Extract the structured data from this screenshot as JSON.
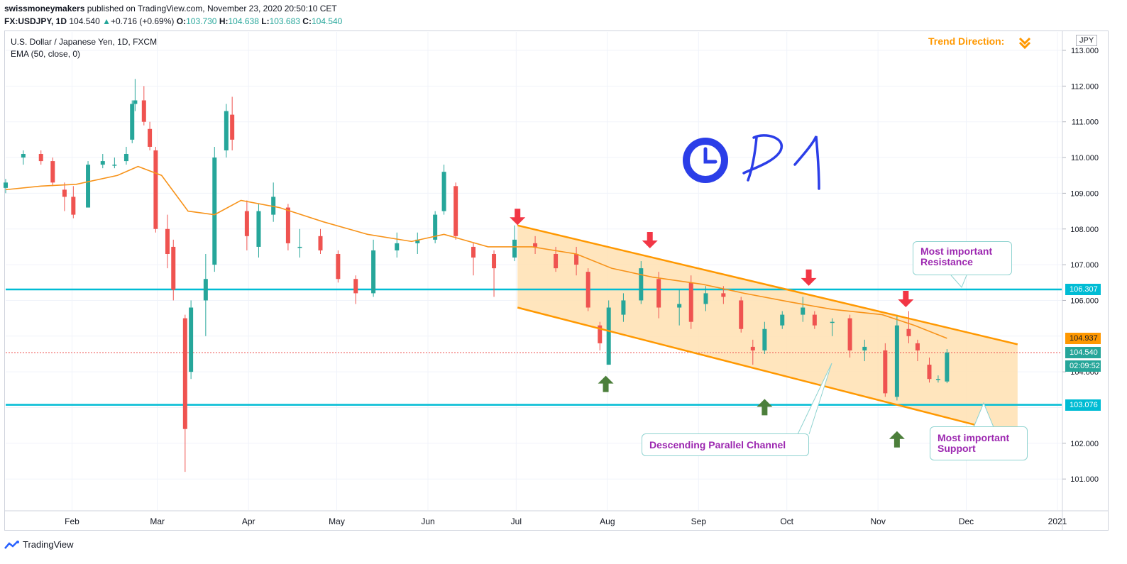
{
  "header": {
    "publisher": "swissmoneymakers",
    "published_text": "published on TradingView.com, November 23, 2020 20:50:10 CET",
    "symbol": "FX:USDJPY, 1D",
    "last": "104.540",
    "change": "+0.716 (+0.69%)",
    "open_label": "O:",
    "open": "103.730",
    "high_label": "H:",
    "high": "104.638",
    "low_label": "L:",
    "low": "103.683",
    "close_label": "C:",
    "close": "104.540"
  },
  "legend": {
    "instrument": "U.S. Dollar / Japanese Yen, 1D, FXCM",
    "indicator": "EMA (50, close, 0)"
  },
  "annotations": {
    "trend_direction": "Trend Direction:",
    "timeframe_text": "D1",
    "resistance_label_1": "Most important",
    "resistance_label_2": "Resistance",
    "support_label_1": "Most important",
    "support_label_2": "Support",
    "channel_label": "Descending Parallel Channel"
  },
  "price_scale": {
    "currency": "JPY",
    "ticks": [
      "113.000",
      "112.000",
      "111.000",
      "110.000",
      "109.000",
      "108.000",
      "107.000",
      "106.000",
      "104.000",
      "102.000",
      "101.000"
    ],
    "tags": {
      "resistance": "106.307",
      "ema": "104.937",
      "last": "104.540",
      "countdown": "02:09:52",
      "support": "103.076"
    }
  },
  "time_axis": {
    "labels": [
      "Feb",
      "Mar",
      "Apr",
      "May",
      "Jun",
      "Jul",
      "Aug",
      "Sep",
      "Oct",
      "Nov",
      "Dec",
      "2021"
    ]
  },
  "footer": {
    "brand": "TradingView"
  },
  "colors": {
    "up": "#26a69a",
    "down": "#ef5350",
    "ema": "#f7931a",
    "channel": "#ff9800",
    "channel_fill": "#ffe0b2",
    "level": "#00bcd4",
    "callout_text": "#9c27b0",
    "arrow_red": "#f23645",
    "arrow_green": "#4c7f3b",
    "clock": "#2b3ee8"
  },
  "chart_data": {
    "type": "candlestick",
    "title": "U.S. Dollar / Japanese Yen, 1D, FXCM",
    "ylim": [
      100.1,
      113.5
    ],
    "x_range": [
      "2020-01-08",
      "2021-01-01"
    ],
    "levels": {
      "resistance": 106.307,
      "support": 103.076,
      "last": 104.54,
      "ema_last": 104.937
    },
    "channel": {
      "upper": [
        [
          "2020-06-30",
          108.1
        ],
        [
          "2020-12-17",
          104.77
        ]
      ],
      "lower": [
        [
          "2020-06-30",
          105.8
        ],
        [
          "2020-12-17",
          102.45
        ]
      ]
    },
    "ema_series": [
      [
        "2020-01-08",
        109.1
      ],
      [
        "2020-01-20",
        109.2
      ],
      [
        "2020-02-01",
        109.25
      ],
      [
        "2020-02-15",
        109.5
      ],
      [
        "2020-02-22",
        109.75
      ],
      [
        "2020-03-01",
        109.5
      ],
      [
        "2020-03-10",
        108.5
      ],
      [
        "2020-03-19",
        108.4
      ],
      [
        "2020-03-28",
        108.8
      ],
      [
        "2020-04-10",
        108.6
      ],
      [
        "2020-04-25",
        108.2
      ],
      [
        "2020-05-10",
        107.85
      ],
      [
        "2020-05-25",
        107.65
      ],
      [
        "2020-06-05",
        107.85
      ],
      [
        "2020-06-20",
        107.5
      ],
      [
        "2020-07-05",
        107.5
      ],
      [
        "2020-07-20",
        107.3
      ],
      [
        "2020-08-01",
        106.9
      ],
      [
        "2020-08-15",
        106.65
      ],
      [
        "2020-09-01",
        106.45
      ],
      [
        "2020-09-15",
        106.2
      ],
      [
        "2020-10-01",
        105.95
      ],
      [
        "2020-10-15",
        105.75
      ],
      [
        "2020-11-01",
        105.6
      ],
      [
        "2020-11-12",
        105.3
      ],
      [
        "2020-11-23",
        104.94
      ]
    ],
    "ohlc": [
      [
        "2020-01-08",
        109.15,
        109.4,
        109.0,
        109.3
      ],
      [
        "2020-01-14",
        110.0,
        110.2,
        109.8,
        110.1
      ],
      [
        "2020-01-20",
        110.1,
        110.2,
        109.8,
        109.9
      ],
      [
        "2020-01-24",
        109.9,
        110.0,
        109.2,
        109.3
      ],
      [
        "2020-01-28",
        109.1,
        109.3,
        108.5,
        108.9
      ],
      [
        "2020-01-31",
        108.9,
        109.2,
        108.3,
        108.4
      ],
      [
        "2020-02-05",
        108.6,
        109.9,
        108.6,
        109.8
      ],
      [
        "2020-02-10",
        109.8,
        110.1,
        109.7,
        109.9
      ],
      [
        "2020-02-14",
        109.8,
        110.0,
        109.7,
        109.8
      ],
      [
        "2020-02-18",
        109.9,
        110.3,
        109.8,
        110.1
      ],
      [
        "2020-02-20",
        110.5,
        111.6,
        110.4,
        111.5
      ],
      [
        "2020-02-21",
        111.5,
        112.2,
        111.3,
        111.6
      ],
      [
        "2020-02-24",
        111.6,
        112.0,
        110.9,
        111.0
      ],
      [
        "2020-02-26",
        110.8,
        111.0,
        110.2,
        110.3
      ],
      [
        "2020-02-28",
        110.2,
        110.3,
        107.9,
        108.0
      ],
      [
        "2020-03-03",
        108.0,
        108.4,
        106.9,
        107.3
      ],
      [
        "2020-03-05",
        107.5,
        107.7,
        106.0,
        106.3
      ],
      [
        "2020-03-09",
        105.5,
        105.6,
        101.2,
        102.4
      ],
      [
        "2020-03-11",
        104.0,
        106.0,
        103.8,
        105.8
      ],
      [
        "2020-03-16",
        106.0,
        107.3,
        105.0,
        106.6
      ],
      [
        "2020-03-19",
        107.0,
        110.3,
        106.8,
        110.0
      ],
      [
        "2020-03-23",
        110.2,
        111.5,
        110.0,
        111.3
      ],
      [
        "2020-03-25",
        111.2,
        111.7,
        110.2,
        110.5
      ],
      [
        "2020-03-30",
        108.5,
        108.8,
        107.4,
        107.8
      ],
      [
        "2020-04-03",
        107.5,
        108.7,
        107.2,
        108.5
      ],
      [
        "2020-04-08",
        108.4,
        109.3,
        108.2,
        108.9
      ],
      [
        "2020-04-13",
        108.6,
        108.7,
        107.4,
        107.6
      ],
      [
        "2020-04-17",
        107.5,
        108.0,
        107.2,
        107.5
      ],
      [
        "2020-04-24",
        107.8,
        108.0,
        107.3,
        107.4
      ],
      [
        "2020-04-30",
        107.3,
        107.4,
        106.5,
        106.6
      ],
      [
        "2020-05-06",
        106.6,
        106.7,
        105.9,
        106.2
      ],
      [
        "2020-05-12",
        106.2,
        107.7,
        106.1,
        107.4
      ],
      [
        "2020-05-20",
        107.4,
        107.9,
        107.2,
        107.6
      ],
      [
        "2020-05-27",
        107.6,
        107.9,
        107.3,
        107.7
      ],
      [
        "2020-06-02",
        107.7,
        108.5,
        107.6,
        108.4
      ],
      [
        "2020-06-05",
        108.5,
        109.8,
        108.4,
        109.6
      ],
      [
        "2020-06-09",
        109.2,
        109.3,
        107.7,
        107.8
      ],
      [
        "2020-06-15",
        107.5,
        107.6,
        106.7,
        107.2
      ],
      [
        "2020-06-22",
        107.3,
        107.4,
        106.1,
        106.9
      ],
      [
        "2020-06-29",
        107.2,
        108.1,
        107.1,
        107.7
      ],
      [
        "2020-07-06",
        107.6,
        107.8,
        107.3,
        107.5
      ],
      [
        "2020-07-13",
        107.3,
        107.5,
        106.8,
        106.9
      ],
      [
        "2020-07-20",
        107.3,
        107.5,
        106.7,
        107.0
      ],
      [
        "2020-07-24",
        106.8,
        106.9,
        105.7,
        105.8
      ],
      [
        "2020-07-28",
        105.3,
        105.4,
        104.6,
        104.8
      ],
      [
        "2020-07-31",
        104.2,
        106.0,
        104.2,
        105.8
      ],
      [
        "2020-08-05",
        105.6,
        106.2,
        105.4,
        106.0
      ],
      [
        "2020-08-11",
        106.0,
        107.1,
        105.9,
        106.9
      ],
      [
        "2020-08-17",
        106.6,
        106.8,
        105.5,
        105.8
      ],
      [
        "2020-08-24",
        105.8,
        106.3,
        105.3,
        105.9
      ],
      [
        "2020-08-28",
        106.5,
        106.7,
        105.2,
        105.4
      ],
      [
        "2020-09-02",
        105.9,
        106.4,
        105.7,
        106.2
      ],
      [
        "2020-09-08",
        106.2,
        106.4,
        105.9,
        106.1
      ],
      [
        "2020-09-14",
        106.0,
        106.1,
        105.1,
        105.2
      ],
      [
        "2020-09-18",
        104.7,
        104.9,
        104.2,
        104.6
      ],
      [
        "2020-09-22",
        104.6,
        105.4,
        104.5,
        105.2
      ],
      [
        "2020-09-28",
        105.3,
        105.7,
        105.2,
        105.6
      ],
      [
        "2020-10-05",
        105.6,
        106.1,
        105.4,
        105.8
      ],
      [
        "2020-10-09",
        105.6,
        105.7,
        105.2,
        105.3
      ],
      [
        "2020-10-15",
        105.4,
        105.5,
        105.0,
        105.4
      ],
      [
        "2020-10-21",
        105.5,
        105.6,
        104.4,
        104.6
      ],
      [
        "2020-10-26",
        104.6,
        104.9,
        104.3,
        104.7
      ],
      [
        "2020-11-02",
        104.6,
        104.8,
        103.3,
        103.4
      ],
      [
        "2020-11-06",
        103.3,
        105.6,
        103.2,
        105.3
      ],
      [
        "2020-11-10",
        105.2,
        105.7,
        104.8,
        105.0
      ],
      [
        "2020-11-13",
        104.8,
        104.9,
        104.3,
        104.6
      ],
      [
        "2020-11-17",
        104.2,
        104.4,
        103.7,
        103.8
      ],
      [
        "2020-11-20",
        103.8,
        103.9,
        103.7,
        103.8
      ],
      [
        "2020-11-23",
        103.73,
        104.638,
        103.683,
        104.54
      ]
    ]
  }
}
